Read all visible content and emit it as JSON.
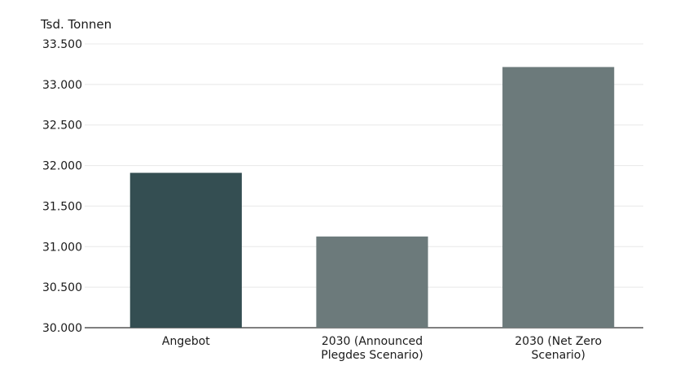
{
  "chart_data": {
    "type": "bar",
    "ylabel": "Tsd. Tonnen",
    "categories": [
      [
        "Angebot"
      ],
      [
        "2030 (Announced",
        "Plegdes Scenario)"
      ],
      [
        "2030 (Net Zero",
        "Scenario)"
      ]
    ],
    "values": [
      31910,
      31125,
      33215
    ],
    "ylim": [
      30000,
      33500
    ],
    "yticks": [
      30000,
      30500,
      31000,
      31500,
      32000,
      32500,
      33000,
      33500
    ],
    "ytick_labels": [
      "30.000",
      "30.500",
      "31.000",
      "31.500",
      "32.000",
      "32.500",
      "33.000",
      "33.500"
    ],
    "grid": true,
    "colors": [
      "#344e52",
      "#6c7a7b",
      "#6c7a7b"
    ],
    "grid_color": "#e8e8e8",
    "axis_color": "#333333"
  }
}
